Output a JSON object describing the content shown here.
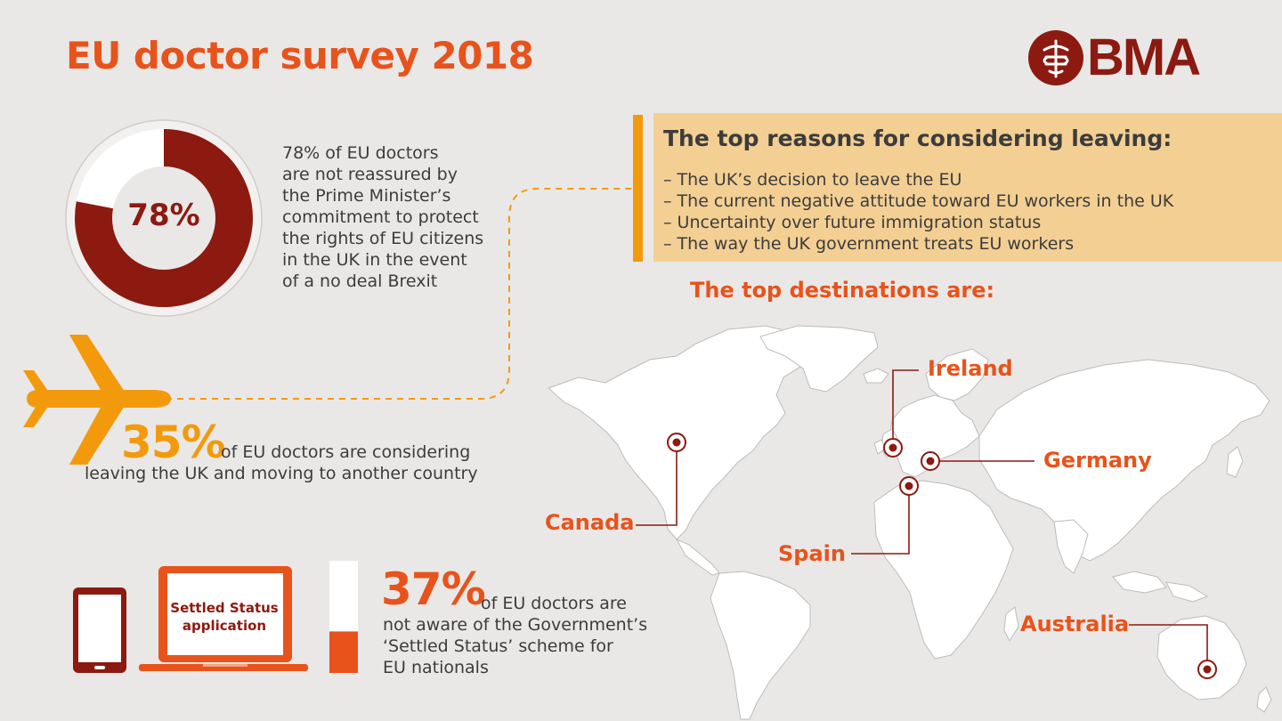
{
  "header": {
    "title": "EU doctor survey 2018",
    "logo_text": "BMA"
  },
  "colors": {
    "orange": "#e8531b",
    "amber": "#f39a0c",
    "maroon": "#8c1a10",
    "tan": "#f3cf93",
    "background": "#e9e8e7"
  },
  "reassured": {
    "percent_label": "78%",
    "fraction": 0.78,
    "text_lines": [
      "78% of EU doctors",
      "are not reassured by",
      "the Prime Minister’s",
      "commitment to protect",
      "the rights of EU citizens",
      "in the UK in the event",
      "of a no deal Brexit"
    ]
  },
  "leaving": {
    "percent_label": "35%",
    "line1": "of EU doctors are considering",
    "line2": "leaving the UK and moving to another country",
    "icon": "plane-icon"
  },
  "reasons": {
    "title": "The top reasons for considering leaving:",
    "items": [
      "– The UK’s decision to leave the EU",
      "– The current negative attitude toward EU workers in the UK",
      "– Uncertainty over future immigration status",
      "– The way the UK government treats EU workers"
    ]
  },
  "destinations": {
    "title": "The top destinations are:",
    "countries": [
      "Ireland",
      "Germany",
      "Canada",
      "Spain",
      "Australia"
    ]
  },
  "settled_status": {
    "screen_label_lines": [
      "Settled Status",
      "application"
    ],
    "percent_label": "37%",
    "fraction": 0.37,
    "text_lines": [
      "of EU doctors are",
      "not aware of the Government’s",
      "‘Settled Status’ scheme for",
      "EU nationals"
    ]
  }
}
